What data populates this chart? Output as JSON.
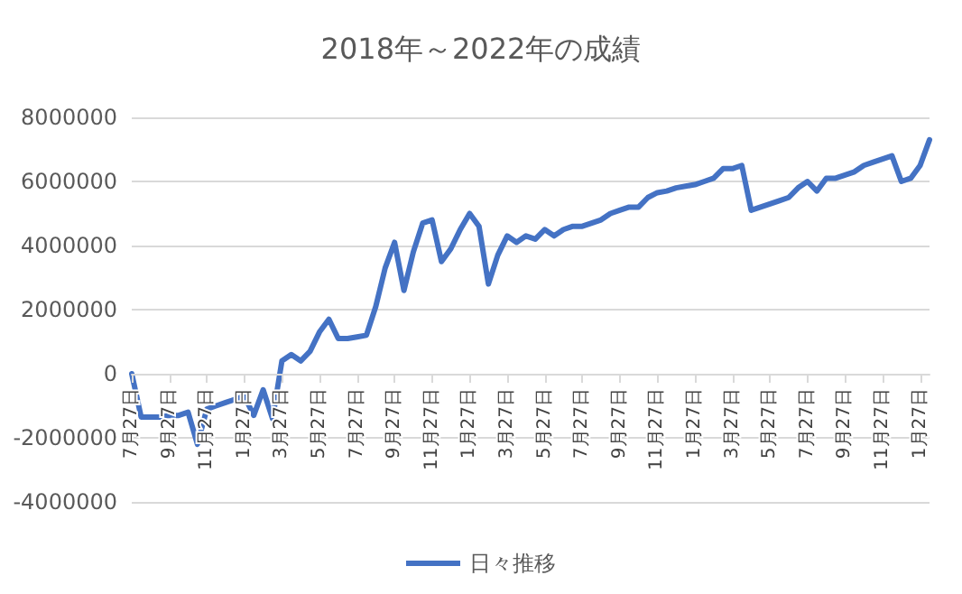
{
  "chart_data": {
    "type": "line",
    "title": "2018年～2022年の成績",
    "categories": [
      "7月27日",
      null,
      null,
      null,
      "9月27日",
      null,
      null,
      null,
      "11月27日",
      null,
      null,
      null,
      "1月27日",
      null,
      null,
      null,
      "3月27日",
      null,
      null,
      null,
      "5月27日",
      null,
      null,
      null,
      "7月27日",
      null,
      null,
      null,
      "9月27日",
      null,
      null,
      null,
      "11月27日",
      null,
      null,
      null,
      "1月27日",
      null,
      null,
      null,
      "3月27日",
      null,
      null,
      null,
      "5月27日",
      null,
      null,
      null,
      "7月27日",
      null,
      null,
      null,
      "9月27日",
      null,
      null,
      null,
      "11月27日",
      null,
      null,
      null,
      "1月27日",
      null,
      null,
      null,
      "3月27日",
      null,
      null,
      null,
      "5月27日",
      null,
      null,
      null,
      "7月27日",
      null,
      null,
      null,
      "9月27日",
      null,
      null,
      null,
      "11月27日",
      null,
      null,
      null,
      "1月27日",
      null
    ],
    "series": [
      {
        "name": "日々推移",
        "color": "#4472c4",
        "values": [
          0,
          -1350000,
          -1350000,
          -1350000,
          -1300000,
          -1300000,
          -1200000,
          -2200000,
          -1100000,
          -1000000,
          -900000,
          -800000,
          -700000,
          -1300000,
          -500000,
          -1400000,
          400000,
          600000,
          400000,
          700000,
          1300000,
          1700000,
          1100000,
          1100000,
          1150000,
          1200000,
          2100000,
          3300000,
          4100000,
          2600000,
          3800000,
          4700000,
          4800000,
          3500000,
          3900000,
          4500000,
          5000000,
          4600000,
          2800000,
          3700000,
          4300000,
          4100000,
          4300000,
          4200000,
          4500000,
          4300000,
          4500000,
          4600000,
          4600000,
          4700000,
          4800000,
          5000000,
          5100000,
          5200000,
          5200000,
          5500000,
          5650000,
          5700000,
          5800000,
          5850000,
          5900000,
          6000000,
          6100000,
          6400000,
          6400000,
          6500000,
          5100000,
          5200000,
          5300000,
          5400000,
          5500000,
          5800000,
          6000000,
          5700000,
          6100000,
          6100000,
          6200000,
          6300000,
          6500000,
          6600000,
          6700000,
          6800000,
          6000000,
          6100000,
          6500000,
          7300000
        ]
      }
    ],
    "ylim": [
      -4000000,
      8000000
    ],
    "yticks": [
      -4000000,
      -2000000,
      0,
      2000000,
      4000000,
      6000000,
      8000000
    ],
    "grid": "y",
    "legend": "bottom",
    "marker": "none",
    "line_style": "solid"
  }
}
